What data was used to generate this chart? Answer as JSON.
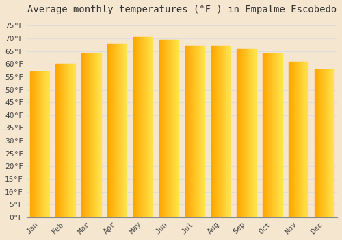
{
  "title": "Average monthly temperatures (°F ) in Empalme Escobedo",
  "months": [
    "Jan",
    "Feb",
    "Mar",
    "Apr",
    "May",
    "Jun",
    "Jul",
    "Aug",
    "Sep",
    "Oct",
    "Nov",
    "Dec"
  ],
  "values": [
    57.0,
    60.0,
    64.0,
    68.0,
    70.5,
    69.5,
    67.0,
    67.0,
    66.0,
    64.0,
    61.0,
    58.0
  ],
  "bar_color_left": "#FFA500",
  "bar_color_right": "#FFD080",
  "background_color": "#f5e6d0",
  "plot_bg_color": "#f5e6d0",
  "grid_color": "#dddddd",
  "ylim": [
    0,
    78
  ],
  "yticks": [
    0,
    5,
    10,
    15,
    20,
    25,
    30,
    35,
    40,
    45,
    50,
    55,
    60,
    65,
    70,
    75
  ],
  "title_fontsize": 10,
  "tick_fontsize": 8,
  "font_family": "monospace"
}
